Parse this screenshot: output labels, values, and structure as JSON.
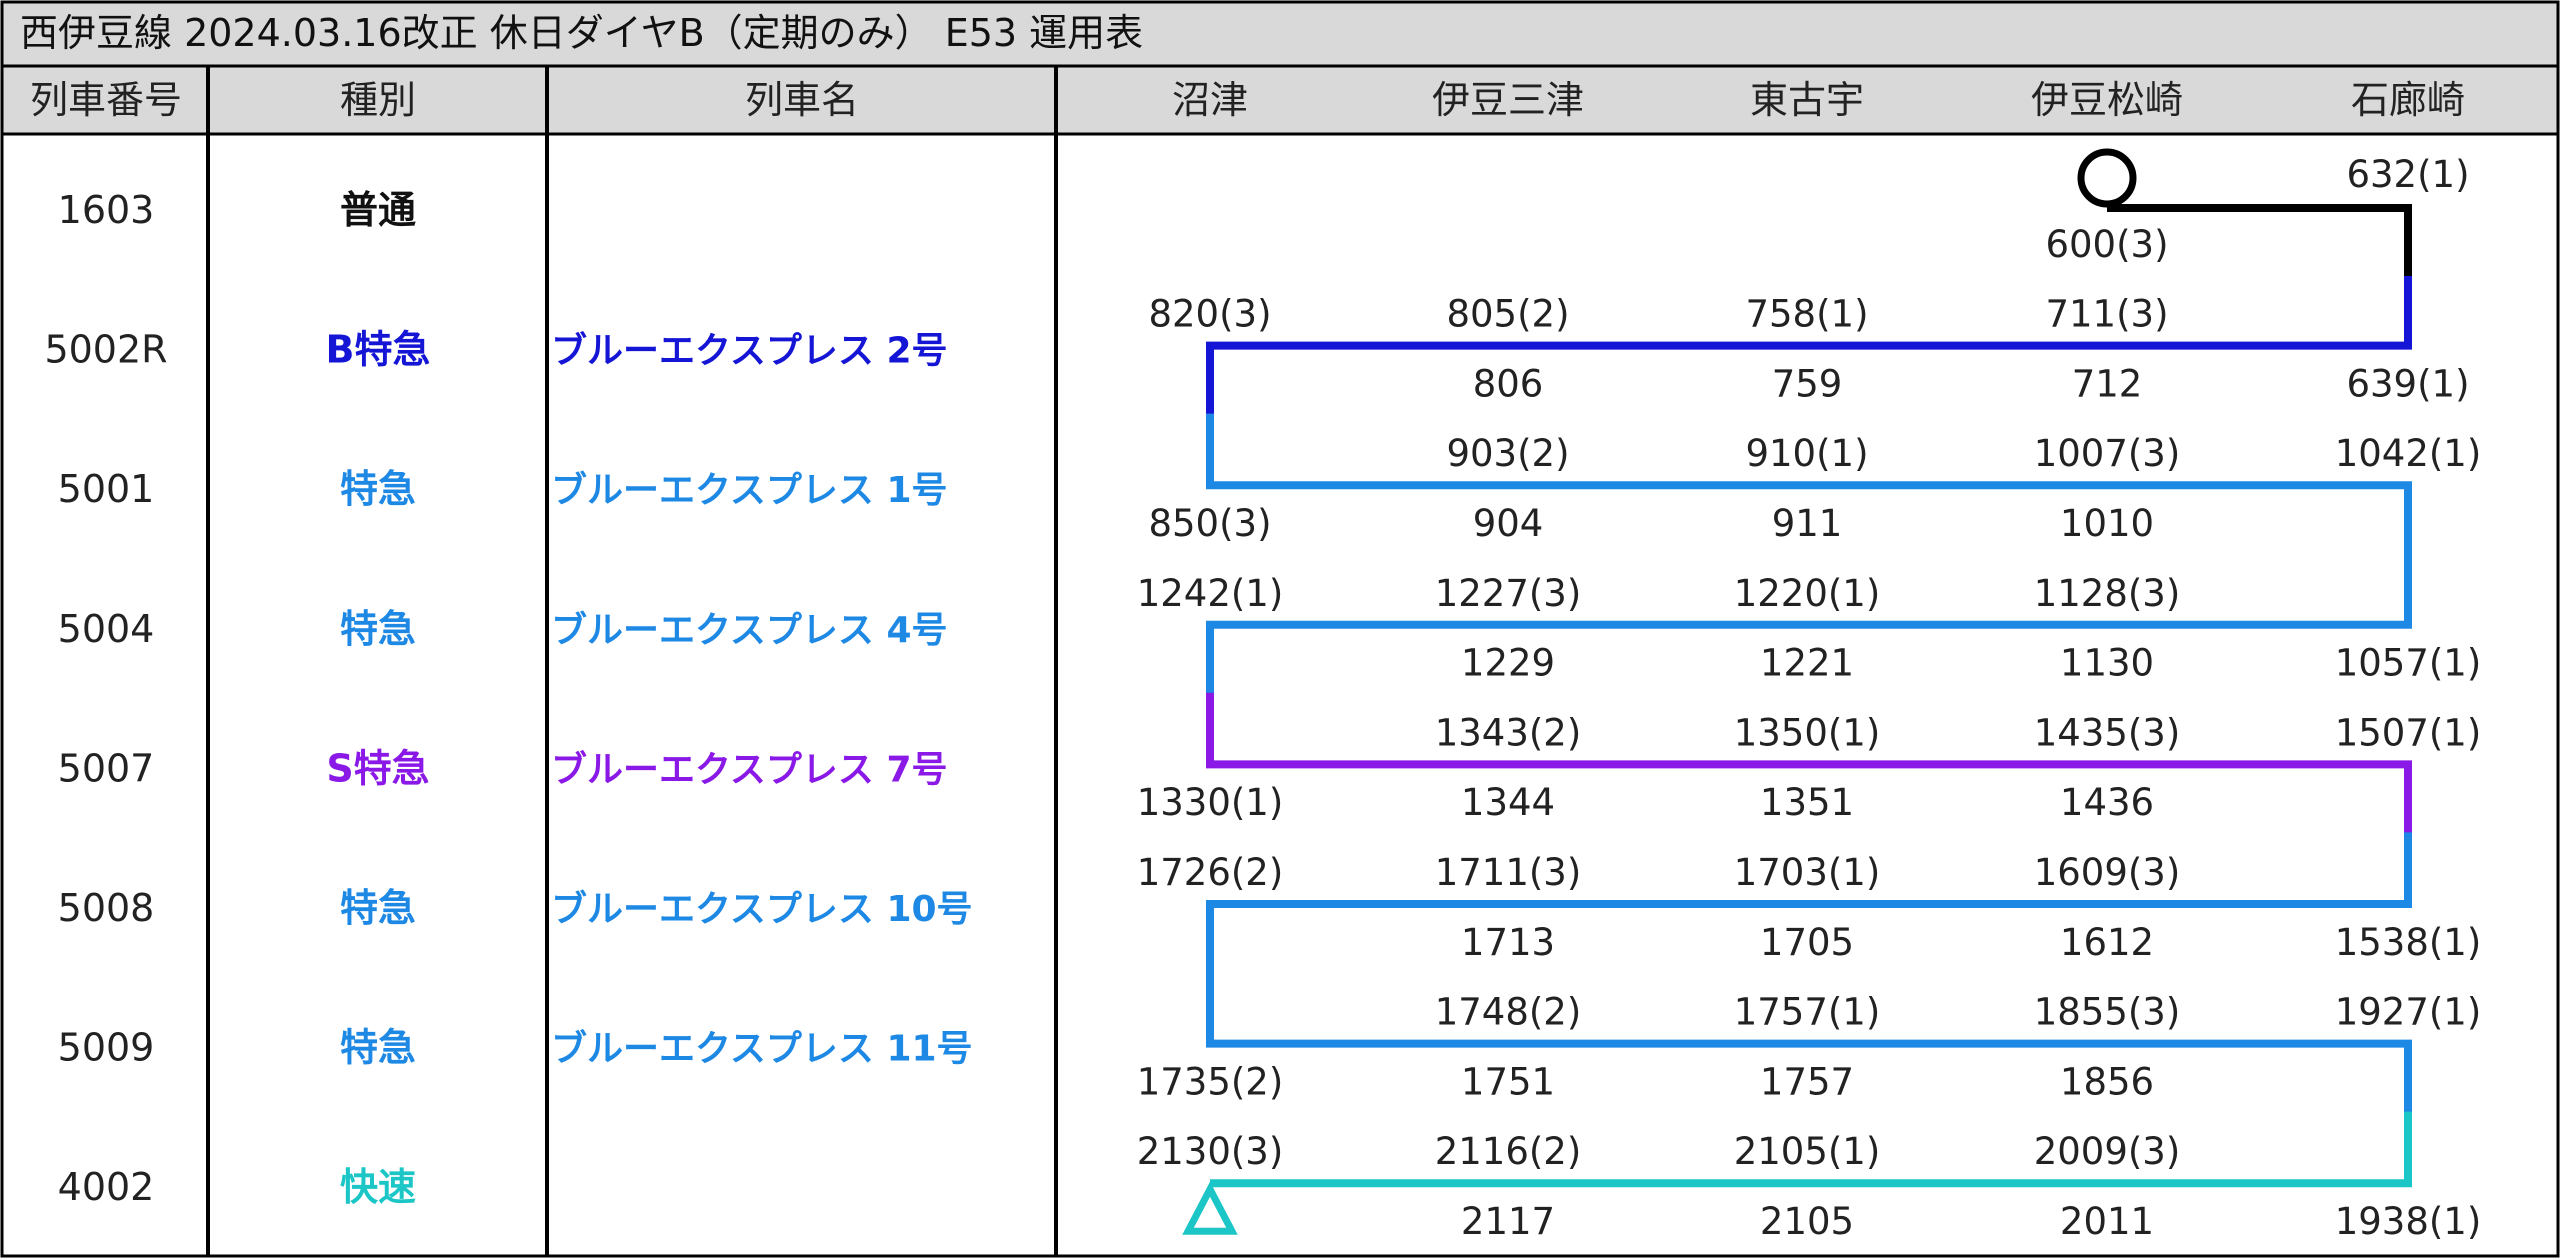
{
  "title": "西伊豆線 2024.03.16改正 休日ダイヤB（定期のみ） E53 運用表",
  "colors": {
    "black": "#000000",
    "B特急": "#1515d6",
    "特急": "#1e88e5",
    "S特急": "#8a18e6",
    "快速": "#1cc6c6"
  },
  "headers": {
    "train_no": "列車番号",
    "class": "種別",
    "name": "列車名",
    "stations": [
      "沼津",
      "伊豆三津",
      "東古宇",
      "伊豆松崎",
      "石廊崎"
    ]
  },
  "trains": [
    {
      "no": "1603",
      "class": "普通",
      "color": "#111111",
      "name": ""
    },
    {
      "no": "5002R",
      "class": "B特急",
      "color": "#1515d6",
      "name": "ブルーエクスプレス 2号"
    },
    {
      "no": "5001",
      "class": "特急",
      "color": "#1e88e5",
      "name": "ブルーエクスプレス 1号"
    },
    {
      "no": "5004",
      "class": "特急",
      "color": "#1e88e5",
      "name": "ブルーエクスプレス 4号"
    },
    {
      "no": "5007",
      "class": "S特急",
      "color": "#8a18e6",
      "name": "ブルーエクスプレス 7号"
    },
    {
      "no": "5008",
      "class": "特急",
      "color": "#1e88e5",
      "name": "ブルーエクスプレス 10号"
    },
    {
      "no": "5009",
      "class": "特急",
      "color": "#1e88e5",
      "name": "ブルーエクスプレス 11号"
    },
    {
      "no": "4002",
      "class": "快速",
      "color": "#1cc6c6",
      "name": ""
    }
  ],
  "times": [
    {
      "station": 4,
      "line": 0,
      "text": "632(1)"
    },
    {
      "station": 3,
      "line": 1,
      "text": "600(3)"
    },
    {
      "station": 0,
      "line": 2,
      "text": "820(3)"
    },
    {
      "station": 1,
      "line": 2,
      "text": "805(2)"
    },
    {
      "station": 2,
      "line": 2,
      "text": "758(1)"
    },
    {
      "station": 3,
      "line": 2,
      "text": "711(3)"
    },
    {
      "station": 1,
      "line": 3,
      "text": "806"
    },
    {
      "station": 2,
      "line": 3,
      "text": "759"
    },
    {
      "station": 3,
      "line": 3,
      "text": "712"
    },
    {
      "station": 4,
      "line": 3,
      "text": "639(1)"
    },
    {
      "station": 1,
      "line": 4,
      "text": "903(2)"
    },
    {
      "station": 2,
      "line": 4,
      "text": "910(1)"
    },
    {
      "station": 3,
      "line": 4,
      "text": "1007(3)"
    },
    {
      "station": 4,
      "line": 4,
      "text": "1042(1)"
    },
    {
      "station": 0,
      "line": 5,
      "text": "850(3)"
    },
    {
      "station": 1,
      "line": 5,
      "text": "904"
    },
    {
      "station": 2,
      "line": 5,
      "text": "911"
    },
    {
      "station": 3,
      "line": 5,
      "text": "1010"
    },
    {
      "station": 0,
      "line": 6,
      "text": "1242(1)"
    },
    {
      "station": 1,
      "line": 6,
      "text": "1227(3)"
    },
    {
      "station": 2,
      "line": 6,
      "text": "1220(1)"
    },
    {
      "station": 3,
      "line": 6,
      "text": "1128(3)"
    },
    {
      "station": 1,
      "line": 7,
      "text": "1229"
    },
    {
      "station": 2,
      "line": 7,
      "text": "1221"
    },
    {
      "station": 3,
      "line": 7,
      "text": "1130"
    },
    {
      "station": 4,
      "line": 7,
      "text": "1057(1)"
    },
    {
      "station": 1,
      "line": 8,
      "text": "1343(2)"
    },
    {
      "station": 2,
      "line": 8,
      "text": "1350(1)"
    },
    {
      "station": 3,
      "line": 8,
      "text": "1435(3)"
    },
    {
      "station": 4,
      "line": 8,
      "text": "1507(1)"
    },
    {
      "station": 0,
      "line": 9,
      "text": "1330(1)"
    },
    {
      "station": 1,
      "line": 9,
      "text": "1344"
    },
    {
      "station": 2,
      "line": 9,
      "text": "1351"
    },
    {
      "station": 3,
      "line": 9,
      "text": "1436"
    },
    {
      "station": 0,
      "line": 10,
      "text": "1726(2)"
    },
    {
      "station": 1,
      "line": 10,
      "text": "1711(3)"
    },
    {
      "station": 2,
      "line": 10,
      "text": "1703(1)"
    },
    {
      "station": 3,
      "line": 10,
      "text": "1609(3)"
    },
    {
      "station": 1,
      "line": 11,
      "text": "1713"
    },
    {
      "station": 2,
      "line": 11,
      "text": "1705"
    },
    {
      "station": 3,
      "line": 11,
      "text": "1612"
    },
    {
      "station": 4,
      "line": 11,
      "text": "1538(1)"
    },
    {
      "station": 1,
      "line": 12,
      "text": "1748(2)"
    },
    {
      "station": 2,
      "line": 12,
      "text": "1757(1)"
    },
    {
      "station": 3,
      "line": 12,
      "text": "1855(3)"
    },
    {
      "station": 4,
      "line": 12,
      "text": "1927(1)"
    },
    {
      "station": 0,
      "line": 13,
      "text": "1735(2)"
    },
    {
      "station": 1,
      "line": 13,
      "text": "1751"
    },
    {
      "station": 2,
      "line": 13,
      "text": "1757"
    },
    {
      "station": 3,
      "line": 13,
      "text": "1856"
    },
    {
      "station": 0,
      "line": 14,
      "text": "2130(3)"
    },
    {
      "station": 1,
      "line": 14,
      "text": "2116(2)"
    },
    {
      "station": 2,
      "line": 14,
      "text": "2105(1)"
    },
    {
      "station": 3,
      "line": 14,
      "text": "2009(3)"
    },
    {
      "station": 1,
      "line": 15,
      "text": "2117"
    },
    {
      "station": 2,
      "line": 15,
      "text": "2105"
    },
    {
      "station": 3,
      "line": 15,
      "text": "2011"
    },
    {
      "station": 4,
      "line": 15,
      "text": "1938(1)"
    }
  ],
  "markers": {
    "start": {
      "shape": "circle-icon",
      "station": 3,
      "train": 0
    },
    "end": {
      "shape": "triangle-icon",
      "station": 0,
      "train": 7
    }
  }
}
